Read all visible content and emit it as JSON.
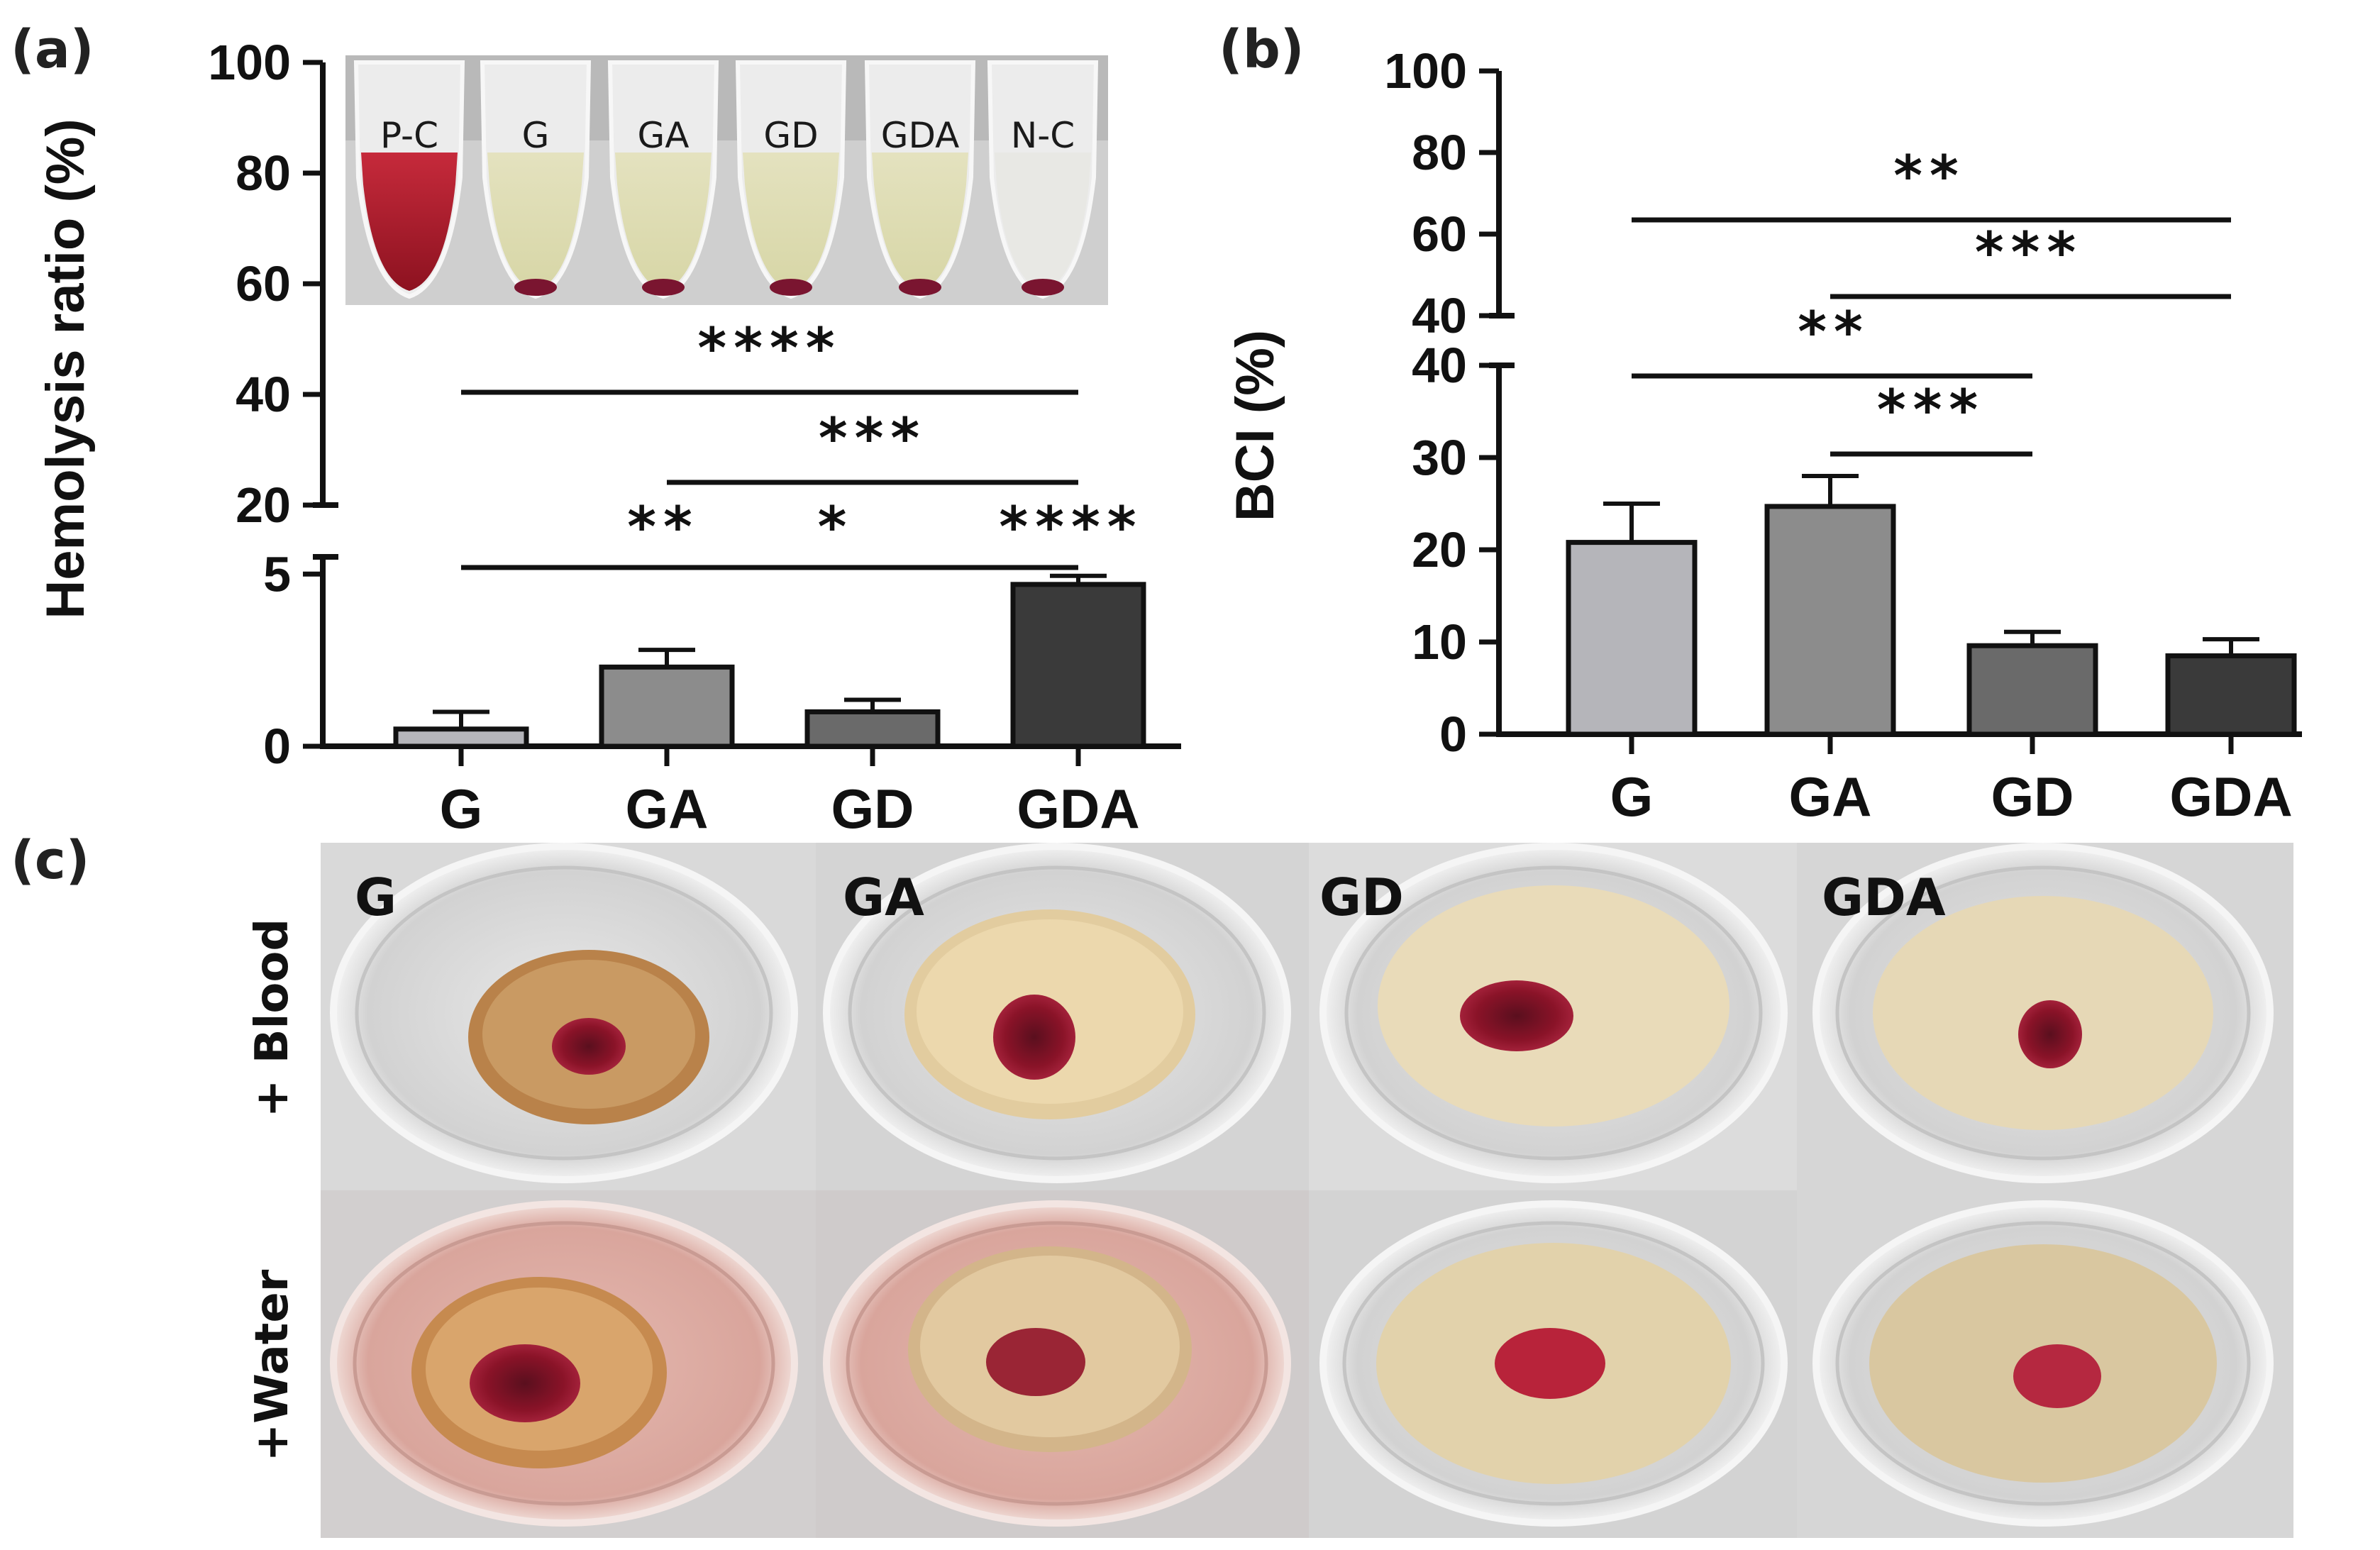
{
  "panel_labels": {
    "a": "(a)",
    "b": "(b)",
    "c": "(c)"
  },
  "colors": {
    "G": "#b5b5ba",
    "GA": "#8c8c8c",
    "GD": "#6a6a6a",
    "GDA": "#3a3a3a"
  },
  "chart_data": [
    {
      "type": "bar",
      "title": "",
      "ylabel": "Hemolysis ratio (%)",
      "xlabel": "",
      "categories": [
        "G",
        "GA",
        "GD",
        "GDA"
      ],
      "values": [
        0.5,
        2.3,
        1.0,
        4.7
      ],
      "errors": [
        0.5,
        0.5,
        0.35,
        0.25
      ],
      "y_axis_break": {
        "lower": [
          0,
          5.5
        ],
        "upper": [
          20,
          100
        ]
      },
      "lower_ticks": [
        "0",
        "5"
      ],
      "upper_ticks": [
        "20",
        "40",
        "60",
        "80",
        "100"
      ],
      "significance": [
        {
          "from": "G",
          "to": "GDA",
          "label": "****"
        },
        {
          "from": "GA",
          "to": "GDA",
          "label": "***"
        },
        {
          "from": "G",
          "to": "GDA",
          "label": "**"
        },
        {
          "from": "G",
          "to": "GDA",
          "label": "*"
        },
        {
          "from": "G",
          "to": "GDA",
          "label": "****"
        }
      ],
      "inset_tube_labels": [
        "P-C",
        "G",
        "GA",
        "GD",
        "GDA",
        "N-C"
      ]
    },
    {
      "type": "bar",
      "title": "",
      "ylabel": "BCI (%)",
      "xlabel": "",
      "categories": [
        "G",
        "GA",
        "GD",
        "GDA"
      ],
      "values": [
        20.8,
        24.7,
        9.6,
        8.5
      ],
      "errors": [
        4.2,
        3.3,
        1.5,
        1.8
      ],
      "y_axis_break": {
        "lower": [
          0,
          40
        ],
        "upper": [
          40,
          100
        ]
      },
      "lower_ticks": [
        "0",
        "10",
        "20",
        "30",
        "40"
      ],
      "upper_ticks": [
        "40",
        "60",
        "80",
        "100"
      ],
      "significance": [
        {
          "from": "G",
          "to": "GDA",
          "label": "**"
        },
        {
          "from": "GA",
          "to": "GDA",
          "label": "***"
        },
        {
          "from": "G",
          "to": "GD",
          "label": "**"
        },
        {
          "from": "GA",
          "to": "GD",
          "label": "***"
        }
      ]
    }
  ],
  "photo_panel": {
    "columns": [
      "G",
      "GA",
      "GD",
      "GDA"
    ],
    "rows": [
      "+ Blood",
      "+Water"
    ]
  }
}
